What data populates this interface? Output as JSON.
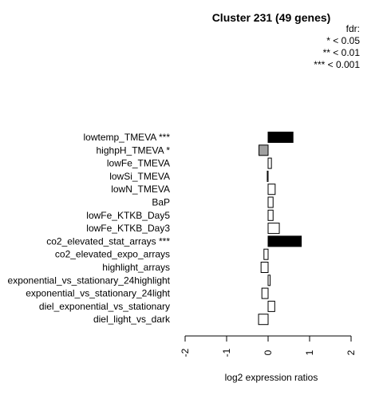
{
  "chart_data": {
    "type": "bar",
    "orientation": "horizontal",
    "title": "Cluster 231 (49 genes)",
    "xlabel": "log2 expression ratios",
    "ylabel": "",
    "xlim": [
      -2,
      2
    ],
    "xticks": [
      "-2",
      "-1",
      "0",
      "1",
      "2"
    ],
    "legend": {
      "placement": "top-right",
      "title": "fdr:",
      "entries": [
        "* < 0.05",
        "** < 0.01",
        "*** < 0.001"
      ]
    },
    "colors": {
      "p001": "#000000",
      "p05": "#a0a0a0",
      "ns": "#ffffff",
      "stroke": "#000000"
    },
    "categories": [
      "lowtemp_TMEVA ***",
      "highpH_TMEVA *",
      "lowFe_TMEVA",
      "lowSi_TMEVA",
      "lowN_TMEVA",
      "BaP",
      "lowFe_KTKB_Day5",
      "lowFe_KTKB_Day3",
      "co2_elevated_stat_arrays ***",
      "co2_elevated_expo_arrays",
      "highlight_arrays",
      "exponential_vs_stationary_24highlight",
      "exponential_vs_stationary_24light",
      "diel_exponential_vs_stationary",
      "diel_light_vs_dark"
    ],
    "values": [
      0.6,
      -0.22,
      0.08,
      -0.02,
      0.17,
      0.12,
      0.12,
      0.27,
      0.8,
      -0.1,
      -0.17,
      0.05,
      -0.15,
      0.16,
      -0.23
    ],
    "significance": [
      "***",
      "*",
      "",
      "",
      "",
      "",
      "",
      "",
      "***",
      "",
      "",
      "",
      "",
      "",
      ""
    ]
  }
}
